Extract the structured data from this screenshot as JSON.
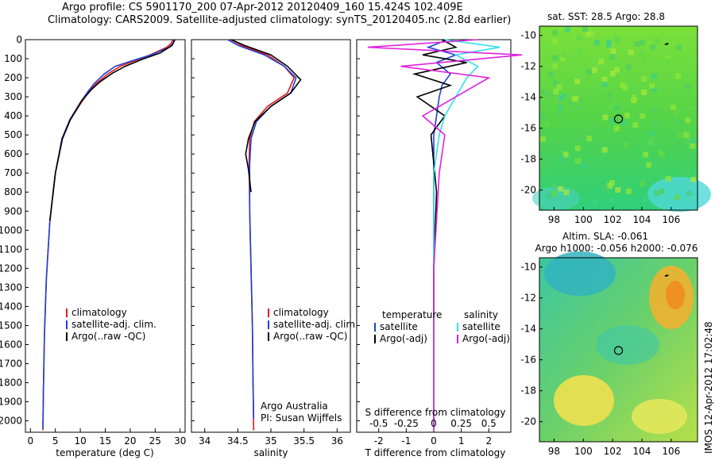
{
  "header": {
    "line1": "Argo profile: CS 5901170_200 07-Apr-2012 20120409_160 15.424S 102.409E",
    "line2": "Climatology: CARS2009. Satellite-adjusted climatology: synTS_20120405.nc (2.8d earlier)"
  },
  "colors": {
    "climatology": "#e31a1c",
    "satellite": "#1f3fd6",
    "argo": "#000000",
    "sat_s": "#30e0e8",
    "argo_s": "#e020e0"
  },
  "depth_axis": {
    "ticks": [
      0,
      100,
      200,
      300,
      400,
      500,
      600,
      700,
      800,
      900,
      1000,
      1100,
      1200,
      1300,
      1400,
      1500,
      1600,
      1700,
      1800,
      1900,
      2000
    ],
    "range": [
      0,
      2060
    ]
  },
  "chart_data": [
    {
      "type": "line",
      "id": "temperature",
      "xlabel": "temperature (deg C)",
      "xlim": [
        -1,
        31
      ],
      "xticks": [
        0,
        5,
        10,
        15,
        20,
        25,
        30
      ],
      "ylim": [
        0,
        2060
      ],
      "legend": [
        "climatology",
        "satellite-adj. clim.",
        "Argo(..raw -QC)"
      ],
      "series": [
        {
          "name": "climatology",
          "color": "#e31a1c",
          "x": [
            28.5,
            28.2,
            27.3,
            24,
            21,
            18,
            15.5,
            13.2,
            11.8,
            10.2,
            8,
            6.4,
            5,
            3.9,
            3.2,
            2.8,
            2.6,
            2.5
          ],
          "y": [
            0,
            20,
            40,
            80,
            110,
            140,
            180,
            230,
            270,
            330,
            420,
            520,
            700,
            950,
            1250,
            1550,
            1850,
            2050
          ]
        },
        {
          "name": "satellite-adj. clim.",
          "color": "#1f3fd6",
          "x": [
            29,
            28.6,
            27.8,
            24.2,
            20.5,
            17,
            14.8,
            12.8,
            11.6,
            10,
            7.9,
            6.3,
            5,
            3.9,
            3.2,
            2.8,
            2.6,
            2.5
          ],
          "y": [
            0,
            20,
            40,
            80,
            110,
            140,
            180,
            230,
            270,
            330,
            420,
            520,
            700,
            950,
            1250,
            1550,
            1850,
            2040
          ]
        },
        {
          "name": "Argo(..raw -QC)",
          "color": "#000000",
          "x": [
            28.8,
            28.7,
            28.4,
            26,
            22.2,
            19,
            16.5,
            14,
            12.3,
            10.3,
            8,
            6.4,
            5,
            3.9
          ],
          "y": [
            0,
            10,
            30,
            70,
            105,
            140,
            175,
            220,
            260,
            320,
            420,
            520,
            700,
            950
          ]
        }
      ]
    },
    {
      "type": "line",
      "id": "salinity",
      "xlabel": "salinity",
      "xlim": [
        33.8,
        36.2
      ],
      "xticks": [
        34,
        34.5,
        35,
        35.5,
        36
      ],
      "ylim": [
        0,
        2060
      ],
      "legend": [
        "climatology",
        "satellite-adj. clim.",
        "Argo(..raw -QC)"
      ],
      "series": [
        {
          "name": "climatology",
          "color": "#e31a1c",
          "x": [
            34.4,
            34.55,
            34.95,
            35.2,
            35.35,
            35.25,
            34.95,
            34.75,
            34.68,
            34.67,
            34.68,
            34.7,
            34.72,
            34.73,
            34.74
          ],
          "y": [
            0,
            30,
            80,
            140,
            200,
            280,
            350,
            430,
            520,
            650,
            900,
            1200,
            1500,
            1800,
            2050
          ]
        },
        {
          "name": "satellite-adj. clim.",
          "color": "#1f3fd6",
          "x": [
            34.35,
            34.5,
            34.9,
            35.2,
            35.38,
            35.3,
            35,
            34.78,
            34.7,
            34.68,
            34.68,
            34.7,
            34.72,
            34.73,
            34.74
          ],
          "y": [
            0,
            30,
            80,
            140,
            200,
            280,
            350,
            430,
            520,
            650,
            900,
            1200,
            1500,
            1800,
            1990
          ]
        },
        {
          "name": "Argo(..raw -QC)",
          "color": "#000000",
          "x": [
            34.4,
            34.6,
            35.0,
            35.25,
            35.45,
            35.3,
            35.0,
            34.76,
            34.66,
            34.62,
            34.66,
            34.7
          ],
          "y": [
            0,
            30,
            80,
            140,
            210,
            280,
            350,
            430,
            520,
            600,
            680,
            800
          ]
        }
      ]
    },
    {
      "type": "line",
      "id": "difference",
      "xlabel": "T difference from climatology",
      "xlabel_top": "S difference from climatology",
      "xlim": [
        -2.8,
        2.8
      ],
      "xticks": [
        -2,
        -1,
        0,
        1,
        2
      ],
      "xticks_top": [
        -0.5,
        -0.25,
        0,
        0.25,
        0.5
      ],
      "ylim": [
        0,
        2060
      ],
      "legend_left_title": "temperature",
      "legend_right_title": "salinity",
      "legend_left": [
        "satellite",
        "Argo(-adj)"
      ],
      "legend_right": [
        "satellite",
        "Argo(-adj)"
      ],
      "series": [
        {
          "name": "T satellite",
          "color": "#1f3fd6",
          "x": [
            0.5,
            -0.2,
            0.8,
            0.1,
            0.6,
            0.3,
            0.2,
            0.1,
            0,
            0,
            0,
            0
          ],
          "y": [
            0,
            40,
            80,
            120,
            180,
            240,
            300,
            400,
            500,
            800,
            1200,
            2000
          ]
        },
        {
          "name": "T Argo(-adj)",
          "color": "#000000",
          "x": [
            0.3,
            0.8,
            -0.4,
            1.2,
            -0.7,
            0.6,
            -0.6,
            0.4,
            -0.1,
            0.1,
            0,
            0
          ],
          "y": [
            0,
            40,
            80,
            120,
            180,
            240,
            300,
            400,
            500,
            800,
            1200,
            1450
          ]
        },
        {
          "name": "S satellite",
          "color": "#30e0e8",
          "x": [
            0.1,
            0.6,
            0.2,
            0.4,
            0.3,
            0.2,
            0.1,
            0.05,
            0,
            0,
            0
          ],
          "y": [
            0,
            40,
            80,
            140,
            200,
            300,
            400,
            500,
            700,
            1200,
            2050
          ]
        },
        {
          "name": "S Argo(-adj)",
          "color": "#e020e0",
          "x": [
            0.4,
            -0.6,
            0.8,
            -0.3,
            0.5,
            0.2,
            -0.1,
            0.1,
            0.05,
            0,
            0
          ],
          "y": [
            0,
            40,
            80,
            140,
            200,
            300,
            400,
            500,
            700,
            1200,
            2050
          ]
        }
      ]
    },
    {
      "type": "heatmap",
      "id": "sst_map",
      "title": "sat. SST: 28.5 Argo: 28.8",
      "xlim": [
        97,
        107.8
      ],
      "ylim": [
        -21.3,
        -9.4
      ],
      "xticks": [
        98,
        100,
        102,
        104,
        106
      ],
      "yticks": [
        -10,
        -12,
        -14,
        -16,
        -18,
        -20
      ],
      "marker": {
        "lon": 102.4,
        "lat": -15.4
      }
    },
    {
      "type": "heatmap",
      "id": "sla_map",
      "title_line1": "Altim. SLA: -0.061",
      "title_line2": "Argo h1000: -0.056 h2000: -0.076",
      "xlim": [
        97,
        107.8
      ],
      "ylim": [
        -21.3,
        -9.4
      ],
      "xticks": [
        98,
        100,
        102,
        104,
        106
      ],
      "yticks": [
        -10,
        -12,
        -14,
        -16,
        -18,
        -20
      ],
      "marker": {
        "lon": 102.4,
        "lat": -15.4
      }
    }
  ],
  "annotations": {
    "argo_australia": "Argo Australia",
    "pi": "PI: Susan Wijffels",
    "footer": "IMOS 12-Apr-2012 17:02:48"
  }
}
